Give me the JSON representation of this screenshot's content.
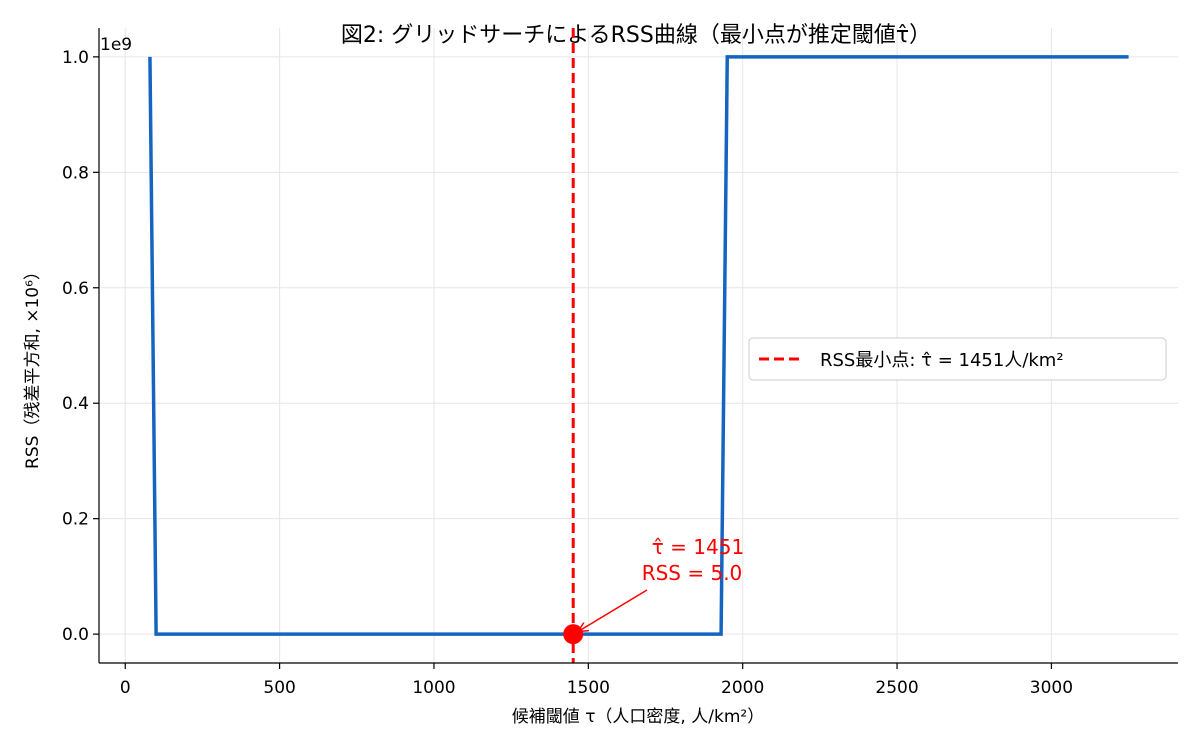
{
  "chart_data": {
    "type": "line",
    "title": "図2: グリッドサーチによるRSS曲線（最小点が推定閾値τ̂）",
    "xlabel": "候補閾値 τ（人口密度, 人/km²）",
    "ylabel": "RSS（残差平方和, ×10⁶）",
    "y_offset_label": "1e9",
    "xlim": [
      -85,
      3410
    ],
    "ylim": [
      -0.05,
      1.05
    ],
    "x_ticks": [
      0,
      500,
      1000,
      1500,
      2000,
      2500,
      3000
    ],
    "x_tick_labels": [
      "0",
      "500",
      "1000",
      "1500",
      "2000",
      "2500",
      "3000"
    ],
    "y_ticks": [
      0,
      0.2,
      0.4,
      0.6,
      0.8,
      1.0
    ],
    "y_tick_labels": [
      "0.0",
      "0.2",
      "0.4",
      "0.6",
      "0.8",
      "1.0"
    ],
    "grid": true,
    "series": [
      {
        "name": "",
        "color": "#1565c0",
        "x": [
          80,
          100,
          1930,
          1950,
          3250
        ],
        "y": [
          1.0,
          0.0,
          0.0,
          1.0,
          1.0
        ]
      }
    ],
    "vline": {
      "x": 1451,
      "color": "#ff0000",
      "label": "RSS最小点: τ̂ = 1451人/km²"
    },
    "min_point": {
      "x": 1451,
      "y": 0.0,
      "color": "#ff0000"
    },
    "annotation": {
      "line1": "τ̂ = 1451",
      "line2": "RSS = 5.0"
    },
    "legend_position": "center-right"
  }
}
